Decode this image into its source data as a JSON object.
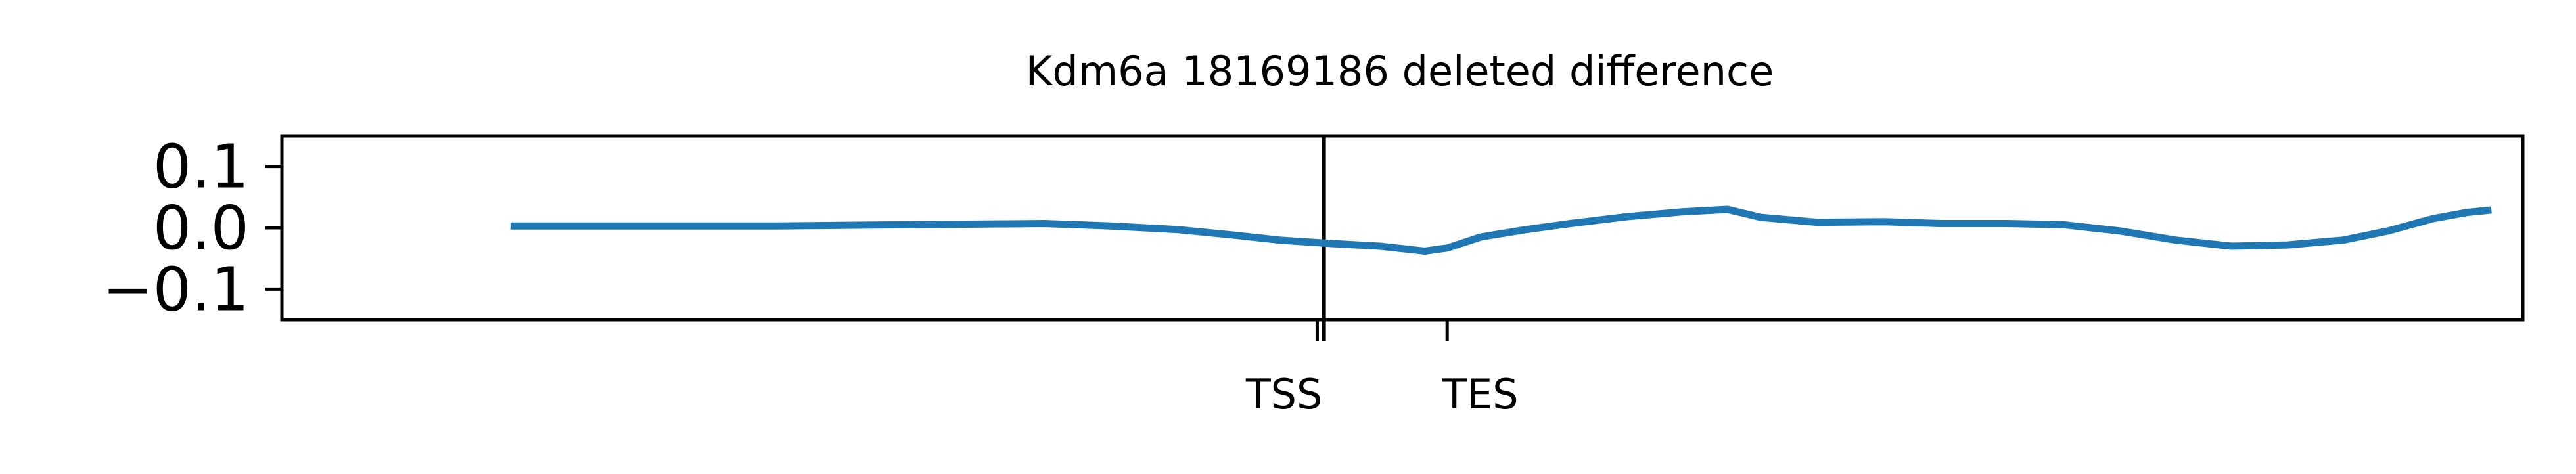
{
  "chart_data": {
    "type": "line",
    "title": "Kdm6a 18169186 deleted difference",
    "xlabel": "",
    "ylabel": "",
    "ylim": [
      -0.15,
      0.15
    ],
    "xlim": [
      0,
      1000
    ],
    "grid": false,
    "legend": "none",
    "yticks": [
      {
        "value": 0.1,
        "label": "0.1"
      },
      {
        "value": 0.0,
        "label": "0.0"
      },
      {
        "value": -0.1,
        "label": "−0.1"
      }
    ],
    "xticks": [
      {
        "value": 462,
        "label": "TSS"
      },
      {
        "value": 520,
        "label": "TES"
      }
    ],
    "vline": {
      "x": 465,
      "color": "#000000"
    },
    "series": [
      {
        "color": "#1f77b4",
        "x": [
          102,
          130,
          160,
          190,
          220,
          250,
          280,
          310,
          340,
          370,
          400,
          425,
          445,
          465,
          490,
          510,
          520,
          535,
          555,
          575,
          600,
          625,
          645,
          660,
          685,
          715,
          740,
          770,
          795,
          820,
          845,
          870,
          895,
          920,
          940,
          960,
          975,
          986
        ],
        "y": [
          0.003,
          0.003,
          0.003,
          0.003,
          0.003,
          0.004,
          0.005,
          0.006,
          0.007,
          0.003,
          -0.003,
          -0.012,
          -0.02,
          -0.025,
          -0.03,
          -0.038,
          -0.033,
          -0.015,
          -0.003,
          0.007,
          0.018,
          0.026,
          0.03,
          0.017,
          0.009,
          0.01,
          0.007,
          0.007,
          0.005,
          -0.005,
          -0.02,
          -0.03,
          -0.028,
          -0.02,
          -0.005,
          0.015,
          0.025,
          0.029
        ]
      }
    ]
  }
}
